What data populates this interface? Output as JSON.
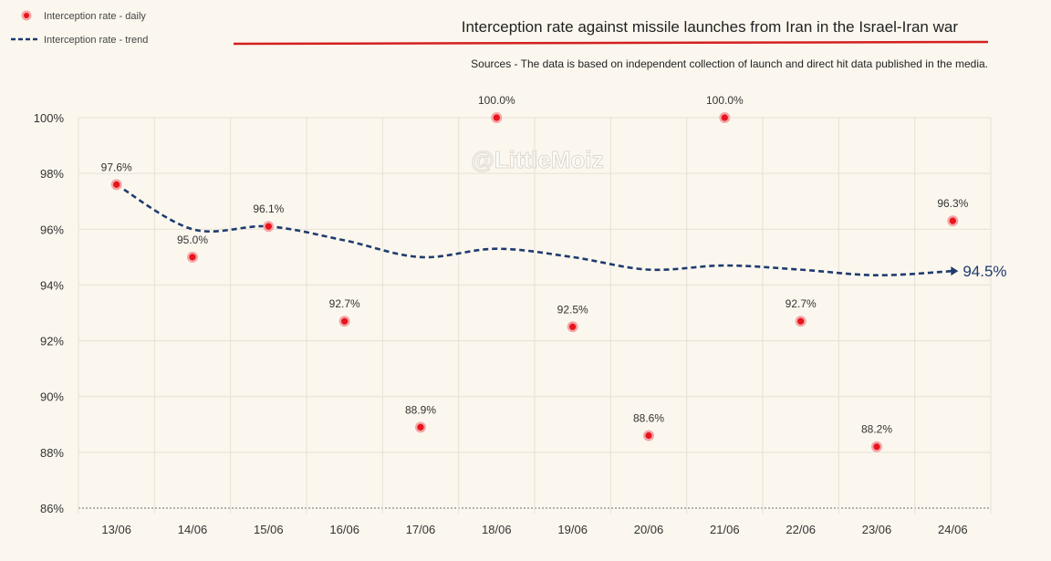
{
  "legend": {
    "daily_label": "Interception rate - daily",
    "trend_label": "Interception rate - trend"
  },
  "watermark": "@LittleMoiz",
  "colors": {
    "background": "#fbf7ee",
    "point_fill": "#e8141e",
    "point_halo": "#f3a7a7",
    "trend_line": "#1f3b6e",
    "title_rule": "#d32020",
    "grid": "#e6e1d6",
    "baseline": "#888888"
  },
  "chart_data": {
    "type": "scatter",
    "title": "Interception rate against missile launches from Iran in the Israel-Iran war",
    "subtitle": "Sources - The data is based on independent collection of launch and direct hit data published in the media.",
    "xlabel": "",
    "ylabel": "",
    "categories": [
      "13/06",
      "14/06",
      "15/06",
      "16/06",
      "17/06",
      "18/06",
      "19/06",
      "20/06",
      "21/06",
      "22/06",
      "23/06",
      "24/06"
    ],
    "ylim": [
      86,
      100
    ],
    "yticks": [
      86,
      88,
      90,
      92,
      94,
      96,
      98,
      100
    ],
    "ytick_labels": [
      "86%",
      "88%",
      "90%",
      "92%",
      "94%",
      "96%",
      "98%",
      "100%"
    ],
    "grid": true,
    "legend_position": "top-left",
    "series": [
      {
        "name": "Interception rate - daily",
        "type": "scatter",
        "values": [
          97.6,
          95.0,
          96.1,
          92.7,
          88.9,
          100.0,
          92.5,
          88.6,
          100.0,
          92.7,
          88.2,
          96.3
        ],
        "labels": [
          "97.6%",
          "95.0%",
          "96.1%",
          "92.7%",
          "88.9%",
          "100.0%",
          "92.5%",
          "88.6%",
          "100.0%",
          "92.7%",
          "88.2%",
          "96.3%"
        ]
      },
      {
        "name": "Interception rate - trend",
        "type": "line",
        "style": "dashed",
        "values": [
          97.6,
          96.0,
          96.1,
          95.6,
          95.0,
          95.3,
          95.0,
          94.55,
          94.7,
          94.55,
          94.35,
          94.5
        ],
        "end_label": "94.5%"
      }
    ]
  }
}
